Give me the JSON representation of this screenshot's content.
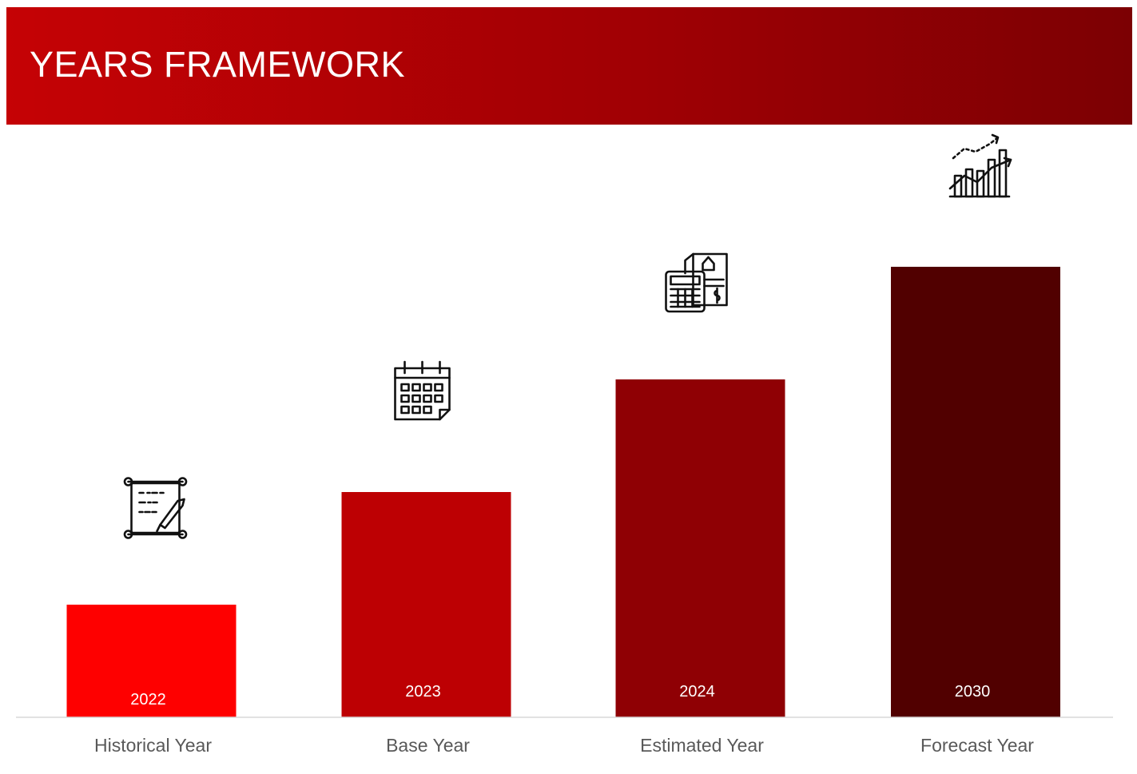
{
  "header": {
    "title": "YEARS FRAMEWORK",
    "background": "#b00004"
  },
  "chart_data": {
    "type": "bar",
    "categories": [
      "Historical Year",
      "Base Year",
      "Estimated Year",
      "Forecast Year"
    ],
    "bar_labels": [
      "2022",
      "2023",
      "2024",
      "2030"
    ],
    "values": [
      1,
      2,
      3,
      4
    ],
    "colors": [
      "#fe0000",
      "#bd0003",
      "#8f0004",
      "#510000"
    ],
    "icons": [
      "scroll-icon",
      "calendar-icon",
      "calculator-invoice-icon",
      "growth-chart-icon"
    ],
    "title": "",
    "xlabel": "",
    "ylabel": "",
    "grid": false,
    "legend": "none"
  }
}
